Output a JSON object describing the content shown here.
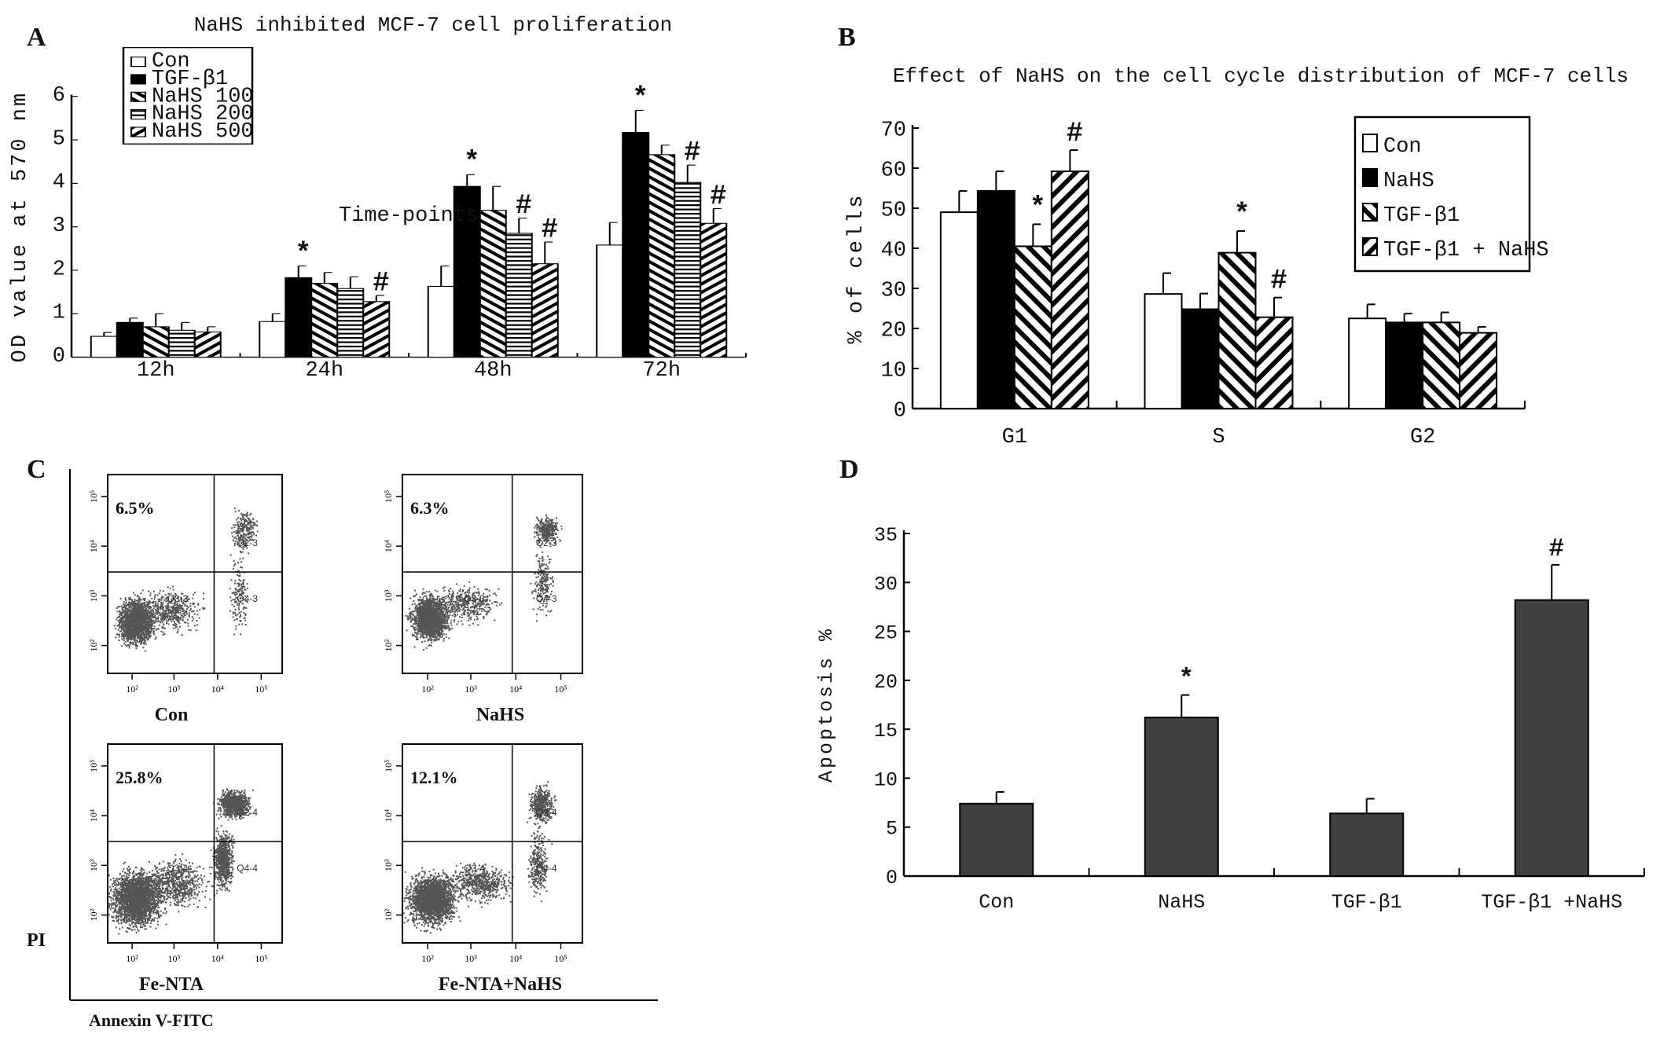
{
  "panel_letters": {
    "a": "A",
    "b": "B",
    "c": "C",
    "d": "D"
  },
  "chart_data": [
    {
      "id": "A",
      "type": "bar",
      "title": "NaHS inhibited MCF-7 cell proliferation",
      "xlabel": "Time-points",
      "ylabel": "OD value at 570 nm",
      "ylim": [
        0,
        6
      ],
      "yticks": [
        "0",
        "1",
        "2",
        "3",
        "4",
        "5",
        "6"
      ],
      "categories": [
        "12h",
        "24h",
        "48h",
        "72h"
      ],
      "legend_position": "top-left",
      "series": [
        {
          "name": "Con",
          "fill": "white",
          "values": [
            0.48,
            0.82,
            1.63,
            2.58
          ],
          "error_top": [
            0.57,
            1.0,
            2.1,
            3.1
          ],
          "marks": [
            "",
            "",
            "",
            ""
          ]
        },
        {
          "name": "TGF-β1",
          "fill": "black",
          "values": [
            0.8,
            1.83,
            3.93,
            5.17
          ],
          "error_top": [
            0.9,
            2.1,
            4.2,
            5.68
          ],
          "marks": [
            "",
            "*",
            "*",
            "*"
          ]
        },
        {
          "name": "NaHS 100",
          "fill": "back-diagonal",
          "values": [
            0.7,
            1.7,
            3.38,
            4.66
          ],
          "error_top": [
            1.0,
            1.95,
            3.93,
            4.88
          ],
          "marks": [
            "",
            "",
            "",
            ""
          ]
        },
        {
          "name": "NaHS 200",
          "fill": "horizontal",
          "values": [
            0.62,
            1.58,
            2.85,
            4.02
          ],
          "error_top": [
            0.8,
            1.85,
            3.2,
            4.42
          ],
          "marks": [
            "",
            "",
            "#",
            "#"
          ]
        },
        {
          "name": "NaHS 500",
          "fill": "forward-diagonal",
          "values": [
            0.58,
            1.28,
            2.15,
            3.08
          ],
          "error_top": [
            0.7,
            1.42,
            2.65,
            3.42
          ],
          "marks": [
            "",
            "#",
            "#",
            "#"
          ]
        }
      ]
    },
    {
      "id": "B",
      "type": "bar",
      "title": "Effect of NaHS on the cell cycle distribution of MCF-7 cells",
      "xlabel": "",
      "ylabel": "% of cells",
      "ylim": [
        0,
        70
      ],
      "yticks": [
        "0",
        "10",
        "20",
        "30",
        "40",
        "50",
        "60",
        "70"
      ],
      "categories": [
        "G1",
        "S",
        "G2"
      ],
      "legend_position": "top-right",
      "series": [
        {
          "name": "Con",
          "fill": "white",
          "values": [
            49,
            28.6,
            22.5
          ],
          "error_top": [
            54.3,
            33.8,
            26
          ],
          "marks": [
            "",
            "",
            ""
          ]
        },
        {
          "name": "NaHS",
          "fill": "black",
          "values": [
            54.3,
            24.8,
            21.5
          ],
          "error_top": [
            59.2,
            28.7,
            23.7
          ],
          "marks": [
            "",
            "",
            ""
          ]
        },
        {
          "name": "TGF-β1",
          "fill": "back-diagonal",
          "values": [
            40.5,
            38.9,
            21.5
          ],
          "error_top": [
            46,
            44.3,
            24
          ],
          "marks": [
            "*",
            "*",
            ""
          ]
        },
        {
          "name": "TGF-β1 + NaHS",
          "fill": "forward-diagonal",
          "values": [
            59.2,
            22.8,
            18.9
          ],
          "error_top": [
            64.5,
            27.7,
            20.4
          ],
          "marks": [
            "#",
            "#",
            ""
          ]
        }
      ]
    },
    {
      "id": "C",
      "type": "scatter",
      "ylabel": "PI",
      "xlabel": "Annexin V-FITC",
      "xticks": [
        "10²",
        "10³",
        "10⁴",
        "10⁵"
      ],
      "yticks": [
        "10⁵",
        "10⁴",
        "10³",
        "10²"
      ],
      "panels": [
        {
          "name": "Con",
          "percent": "6.5%",
          "quadrants": [
            "Q2-3",
            "Q3-3",
            "Q4-3"
          ]
        },
        {
          "name": "NaHS",
          "percent": "6.3%",
          "quadrants": [
            "Q2-3",
            "Q3-3",
            "Q4-3"
          ]
        },
        {
          "name": "Fe-NTA",
          "percent": "25.8%",
          "quadrants": [
            "Q2-4",
            "Q3-4",
            "Q4-4"
          ]
        },
        {
          "name": "Fe-NTA+NaHS",
          "percent": "12.1%",
          "quadrants": [
            "Q2-4",
            "Q3-4",
            "Q4-4"
          ]
        }
      ]
    },
    {
      "id": "D",
      "type": "bar",
      "title": "",
      "xlabel": "",
      "ylabel": "Apoptosis %",
      "ylim": [
        0,
        35
      ],
      "yticks": [
        "0",
        "5",
        "10",
        "15",
        "20",
        "25",
        "30",
        "35"
      ],
      "categories": [
        "Con",
        "NaHS",
        "TGF-β1",
        "TGF-β1 +NaHS"
      ],
      "series": [
        {
          "name": "Apoptosis",
          "fill": "#404040",
          "values": [
            7.4,
            16.2,
            6.4,
            28.2
          ],
          "error_top": [
            8.6,
            18.5,
            7.9,
            31.8
          ],
          "marks": [
            "",
            "*",
            "",
            "#"
          ]
        }
      ]
    }
  ]
}
